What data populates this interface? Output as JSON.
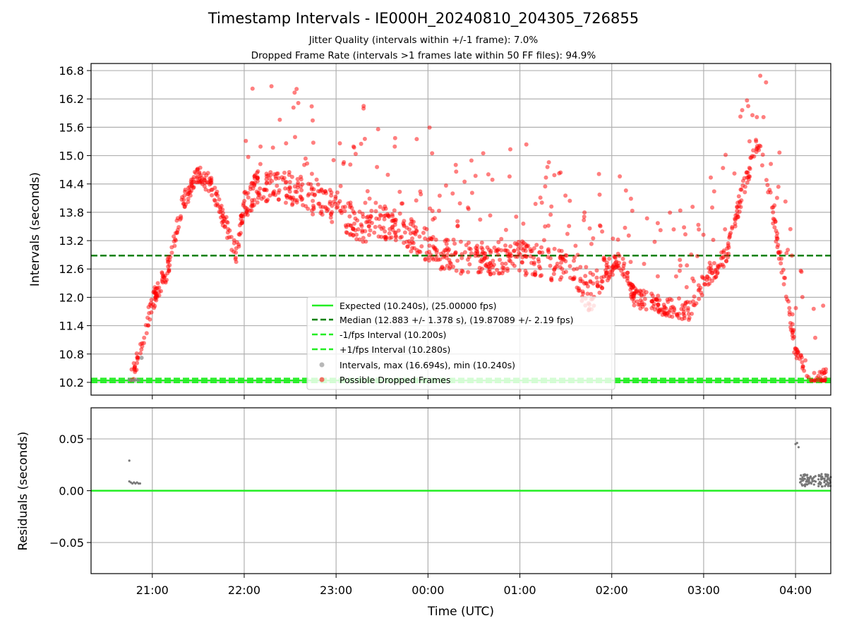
{
  "figure": {
    "title": "Timestamp Intervals - IE000H_20240810_204305_726855",
    "subtitle_1": "Jitter Quality (intervals within +/-1 frame): 7.0%",
    "subtitle_2": "Dropped Frame Rate (intervals >1 frames late within 50 FF files): 94.9%"
  },
  "chart_data": [
    {
      "type": "scatter",
      "ylabel": "Intervals (seconds)",
      "xlabel": "",
      "x_unit": "time (UTC)",
      "x_ticks": [
        "21:00",
        "22:00",
        "23:00",
        "00:00",
        "01:00",
        "02:00",
        "03:00",
        "04:00"
      ],
      "x_range": [
        "20:20",
        "04:23"
      ],
      "y_ticks": [
        "10.2",
        "10.8",
        "11.4",
        "12.0",
        "12.6",
        "13.2",
        "13.8",
        "14.4",
        "15.0",
        "15.6",
        "16.2",
        "16.8"
      ],
      "ylim": [
        9.93,
        16.95
      ],
      "grid": true,
      "legend_position": "lower-center",
      "reference_lines": [
        {
          "name": "Expected (10.240s), (25.00000 fps)",
          "value": 10.24,
          "style": "solid",
          "color": "#22ee22"
        },
        {
          "name": "Median (12.883 +/- 1.378 s), (19.87089 +/- 2.19 fps)",
          "value": 12.883,
          "style": "dashed",
          "color": "#008000"
        },
        {
          "name": "-1/fps Interval (10.200s)",
          "value": 10.2,
          "style": "dashed",
          "color": "#22ee22"
        },
        {
          "name": "+1/fps Interval (10.280s)",
          "value": 10.28,
          "style": "dashed",
          "color": "#22ee22"
        }
      ],
      "series": [
        {
          "name": "Intervals, max (16.694s), min (10.240s)",
          "color": "#888888",
          "kind": "scatter"
        },
        {
          "name": "Possible Dropped Frames",
          "color": "#ff0000",
          "kind": "scatter",
          "trend": [
            [
              "20:46",
              10.24
            ],
            [
              "20:52",
              10.9
            ],
            [
              "21:00",
              11.9
            ],
            [
              "21:10",
              12.6
            ],
            [
              "21:15",
              13.3
            ],
            [
              "21:20",
              14.0
            ],
            [
              "21:30",
              14.6
            ],
            [
              "21:38",
              14.4
            ],
            [
              "21:45",
              13.8
            ],
            [
              "21:55",
              12.9
            ],
            [
              "22:00",
              14.0
            ],
            [
              "22:10",
              14.4
            ],
            [
              "22:30",
              14.3
            ],
            [
              "23:00",
              13.9
            ],
            [
              "23:15",
              13.5
            ],
            [
              "23:30",
              13.6
            ],
            [
              "23:45",
              13.4
            ],
            [
              "00:00",
              13.1
            ],
            [
              "00:10",
              12.9
            ],
            [
              "00:30",
              12.8
            ],
            [
              "01:00",
              12.85
            ],
            [
              "01:20",
              12.7
            ],
            [
              "01:35",
              12.6
            ],
            [
              "01:45",
              12.0
            ],
            [
              "01:55",
              12.5
            ],
            [
              "02:05",
              12.8
            ],
            [
              "02:15",
              12.0
            ],
            [
              "02:30",
              11.85
            ],
            [
              "02:50",
              11.7
            ],
            [
              "03:00",
              12.3
            ],
            [
              "03:15",
              12.9
            ],
            [
              "03:25",
              14.2
            ],
            [
              "03:35",
              15.3
            ],
            [
              "03:40",
              14.8
            ],
            [
              "03:46",
              13.6
            ],
            [
              "03:52",
              12.5
            ],
            [
              "03:58",
              11.3
            ],
            [
              "04:00",
              10.8
            ],
            [
              "04:10",
              10.3
            ],
            [
              "04:20",
              10.24
            ]
          ]
        }
      ]
    },
    {
      "type": "scatter",
      "ylabel": "Residuals (seconds)",
      "xlabel": "Time (UTC)",
      "x_ticks": [
        "21:00",
        "22:00",
        "23:00",
        "00:00",
        "01:00",
        "02:00",
        "03:00",
        "04:00"
      ],
      "y_ticks": [
        "0.05",
        "0.00",
        "−0.05"
      ],
      "ylim": [
        -0.08,
        0.08
      ],
      "grid": true,
      "reference_line": {
        "value": 0.0,
        "color": "#22ee22"
      },
      "series": [
        {
          "name": "residuals",
          "color": "#777777",
          "points": [
            [
              "20:45",
              0.029
            ],
            [
              "20:45",
              0.009
            ],
            [
              "20:46",
              0.008
            ],
            [
              "20:47",
              0.007
            ],
            [
              "20:48",
              0.008
            ],
            [
              "20:49",
              0.007
            ],
            [
              "20:50",
              0.008
            ],
            [
              "20:51",
              0.007
            ],
            [
              "20:52",
              0.007
            ],
            [
              "04:00",
              0.045
            ],
            [
              "04:01",
              0.046
            ],
            [
              "04:02",
              0.042
            ],
            [
              "04:03",
              0.008
            ],
            [
              "04:05",
              0.01
            ],
            [
              "04:07",
              0.015
            ],
            [
              "04:09",
              0.012
            ],
            [
              "04:11",
              0.009
            ],
            [
              "04:13",
              0.014
            ],
            [
              "04:15",
              0.011
            ],
            [
              "04:17",
              0.016
            ],
            [
              "04:19",
              0.01
            ],
            [
              "04:21",
              0.013
            ],
            [
              "04:22",
              0.007
            ]
          ]
        }
      ]
    }
  ]
}
